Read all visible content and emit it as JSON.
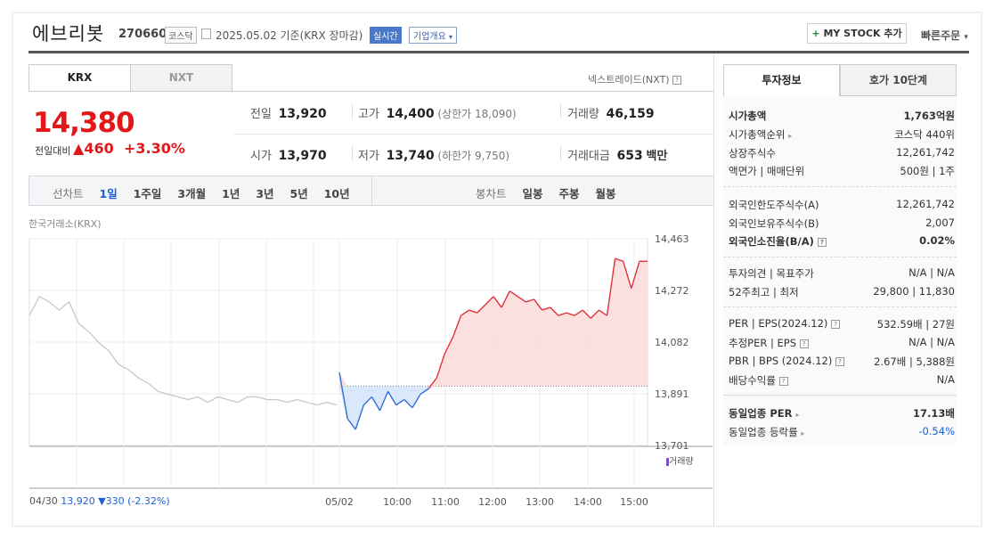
{
  "header": {
    "name": "에브리봇",
    "code": "270660",
    "market": "코스닥",
    "date_basis": "2025.05.02  기준(KRX 장마감)",
    "realtime_badge": "실시간",
    "company_overview": "기업개요",
    "my_stock_button": "MY STOCK 추가",
    "quick_order": "빠른주문"
  },
  "market_tabs": [
    "KRX",
    "NXT"
  ],
  "nextrade_link": "넥스트레이드(NXT)",
  "quote": {
    "price": "14,380",
    "change_label": "전일대비",
    "change": "460",
    "change_pct": "+3.30%",
    "prev_close_label": "전일",
    "prev_close": "13,920",
    "high_label": "고가",
    "high": "14,400",
    "upper_limit": "(상한가 18,090)",
    "volume_label": "거래량",
    "volume": "46,159",
    "open_label": "시가",
    "open": "13,970",
    "low_label": "저가",
    "low": "13,740",
    "lower_limit": "(하한가 9,750)",
    "turnover_label": "거래대금",
    "turnover": "653",
    "turnover_unit": "백만"
  },
  "chart_controls": {
    "line_label": "선차트",
    "line_periods": [
      "1일",
      "1주일",
      "3개월",
      "1년",
      "3년",
      "5년",
      "10년"
    ],
    "candle_label": "봉차트",
    "candle_periods": [
      "일봉",
      "주봉",
      "월봉"
    ]
  },
  "chart_source": "한국거래소(KRX)",
  "volume_legend": "거래량",
  "prev_day_info": {
    "date": "04/30",
    "price": "13,920",
    "change": "▼330",
    "pct": "(-2.32%)"
  },
  "chart_data": {
    "type": "line",
    "yticks": [
      "14,463",
      "14,272",
      "14,082",
      "13,891",
      "13,701"
    ],
    "ylim": [
      13701,
      14463
    ],
    "xticks": [
      "05/02",
      "10:00",
      "11:00",
      "12:00",
      "13:00",
      "14:00",
      "15:00"
    ],
    "baseline": 13920,
    "series": [
      {
        "values": [
          14180,
          14250,
          14230,
          14200,
          14230,
          14150,
          14120,
          14080,
          14050,
          14000,
          13980,
          13950,
          13930,
          13900,
          13890,
          13880,
          13870,
          13880,
          13860,
          13880,
          13870,
          13860,
          13880,
          13880,
          13870,
          13870,
          13860,
          13870,
          13860,
          13850,
          13860,
          13850
        ]
      },
      {
        "values": [
          13970,
          13800,
          13760,
          13850,
          13880,
          13830,
          13900,
          13850,
          13870,
          13840,
          13890,
          13910,
          13950,
          14040,
          14100,
          14180,
          14200,
          14190,
          14220,
          14250,
          14210,
          14270,
          14250,
          14230,
          14240,
          14200,
          14210,
          14180,
          14190,
          14180,
          14200,
          14170,
          14200,
          14180,
          14390,
          14380,
          14280,
          14380,
          14380
        ]
      }
    ]
  },
  "invest_tabs": [
    "투자정보",
    "호가 10단계"
  ],
  "invest_info": {
    "group1": [
      {
        "label": "시가총액",
        "value": "1,763억원"
      },
      {
        "label": "시가총액순위",
        "value": "코스닥 440위"
      },
      {
        "label": "상장주식수",
        "value": "12,261,742"
      },
      {
        "label": "액면가 | 매매단위",
        "value": "500원 | 1주"
      }
    ],
    "group2": [
      {
        "label": "외국인한도주식수(A)",
        "value": "12,261,742"
      },
      {
        "label": "외국인보유주식수(B)",
        "value": "2,007"
      },
      {
        "label": "외국인소진율(B/A)",
        "value": "0.02%"
      }
    ],
    "group3": [
      {
        "label": "투자의견 | 목표주가",
        "value": "N/A | N/A"
      },
      {
        "label": "52주최고 | 최저",
        "value": "29,800 | 11,830"
      }
    ],
    "group4": [
      {
        "label": "PER | EPS(2024.12)",
        "value": "532.59배 | 27원"
      },
      {
        "label": "추정PER | EPS",
        "value": "N/A | N/A"
      },
      {
        "label": "PBR | BPS (2024.12)",
        "value": "2.67배 | 5,388원"
      },
      {
        "label": "배당수익률",
        "value": "N/A"
      }
    ],
    "group5": [
      {
        "label": "동일업종 PER",
        "value": "17.13배"
      },
      {
        "label": "동일업종 등락률",
        "value": "-0.54%"
      }
    ]
  }
}
